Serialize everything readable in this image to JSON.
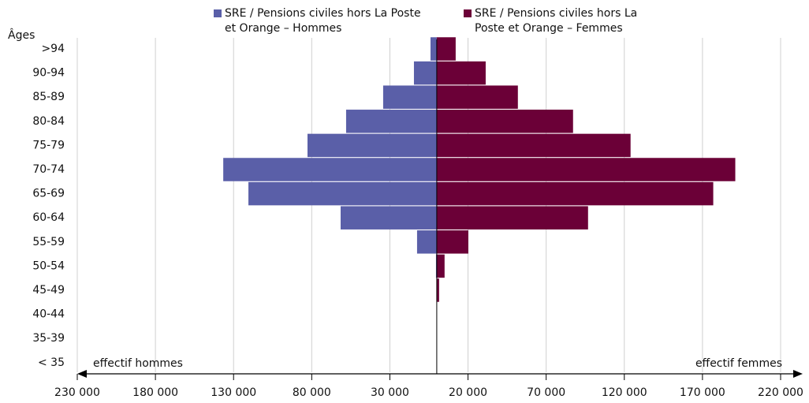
{
  "chart_data": {
    "type": "pyramid",
    "y_label": "Âges",
    "left_label": "effectif  hommes",
    "right_label": "effectif femmes",
    "categories": [
      ">94",
      "90-94",
      "85-89",
      "80-84",
      "75-79",
      "70-74",
      "65-69",
      "60-64",
      "55-59",
      "50-54",
      "45-49",
      "40-44",
      "35-39",
      "< 35"
    ],
    "series": [
      {
        "name": "SRE / Pensions civiles hors La Poste et Orange – Hommes",
        "color": "#5a5fa8",
        "side": "left",
        "values": [
          4000,
          14600,
          34300,
          58000,
          82700,
          136600,
          120500,
          61500,
          12600,
          500,
          200,
          0,
          0,
          0
        ]
      },
      {
        "name": "SRE / Pensions civiles hors La Poste et Orange – Femmes",
        "color": "#6b0037",
        "side": "right",
        "values": [
          12100,
          31300,
          51900,
          87200,
          124000,
          191000,
          176900,
          96800,
          20200,
          5000,
          1500,
          0,
          0,
          0
        ]
      }
    ],
    "xlim": [
      -230000,
      220000
    ],
    "xticks": [
      {
        "value": -230000,
        "label": "230 000"
      },
      {
        "value": -180000,
        "label": "180 000"
      },
      {
        "value": -130000,
        "label": "130 000"
      },
      {
        "value": -80000,
        "label": "80 000"
      },
      {
        "value": -30000,
        "label": "30 000"
      },
      {
        "value": 20000,
        "label": "20 000"
      },
      {
        "value": 70000,
        "label": "70 000"
      },
      {
        "value": 120000,
        "label": "120 000"
      },
      {
        "value": 170000,
        "label": "170 000"
      },
      {
        "value": 220000,
        "label": "220 000"
      }
    ],
    "grid": true
  }
}
